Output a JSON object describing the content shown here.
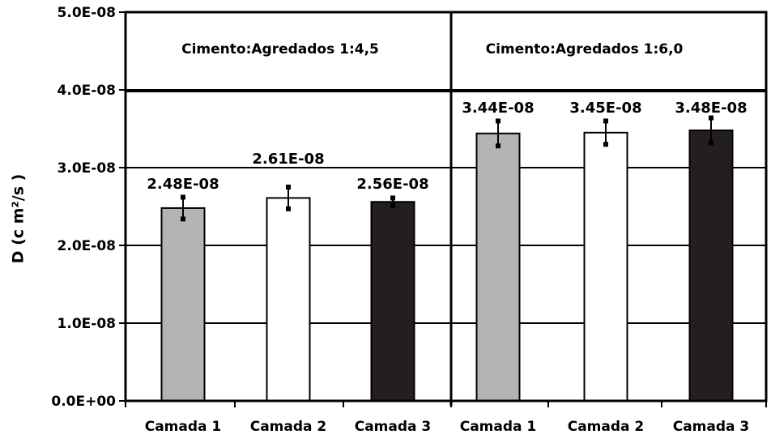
{
  "chart_data": {
    "type": "bar",
    "ylabel": "D (c m²/s )",
    "ylim": [
      0,
      5e-08
    ],
    "yticks": [
      {
        "value": 0,
        "label": "0.0E+00"
      },
      {
        "value": 1e-08,
        "label": "1.0E-08"
      },
      {
        "value": 2e-08,
        "label": "2.0E-08"
      },
      {
        "value": 3e-08,
        "label": "3.0E-08"
      },
      {
        "value": 4e-08,
        "label": "4.0E-08"
      },
      {
        "value": 5e-08,
        "label": "5.0E-08"
      }
    ],
    "grid": true,
    "groups": [
      {
        "label": "Cimento:Agredados  1:4,5",
        "bars": [
          {
            "category": "Camada 1",
            "value": 2.48e-08,
            "error": 1.4e-09,
            "label": "2.48E-08",
            "color": "#b3b4b6"
          },
          {
            "category": "Camada 2",
            "value": 2.61e-08,
            "error": 1.4e-09,
            "label": "2.61E-08",
            "color": "#ffffff"
          },
          {
            "category": "Camada 3",
            "value": 2.56e-08,
            "error": 5e-10,
            "label": "2.56E-08",
            "color": "#231f20"
          }
        ]
      },
      {
        "label": "Cimento:Agredados  1:6,0",
        "bars": [
          {
            "category": "Camada 1",
            "value": 3.44e-08,
            "error": 1.6e-09,
            "label": "3.44E-08",
            "color": "#b3b4b6"
          },
          {
            "category": "Camada 2",
            "value": 3.45e-08,
            "error": 1.5e-09,
            "label": "3.45E-08",
            "color": "#ffffff"
          },
          {
            "category": "Camada 3",
            "value": 3.48e-08,
            "error": 1.6e-09,
            "label": "3.48E-08",
            "color": "#231f20"
          }
        ]
      }
    ]
  }
}
